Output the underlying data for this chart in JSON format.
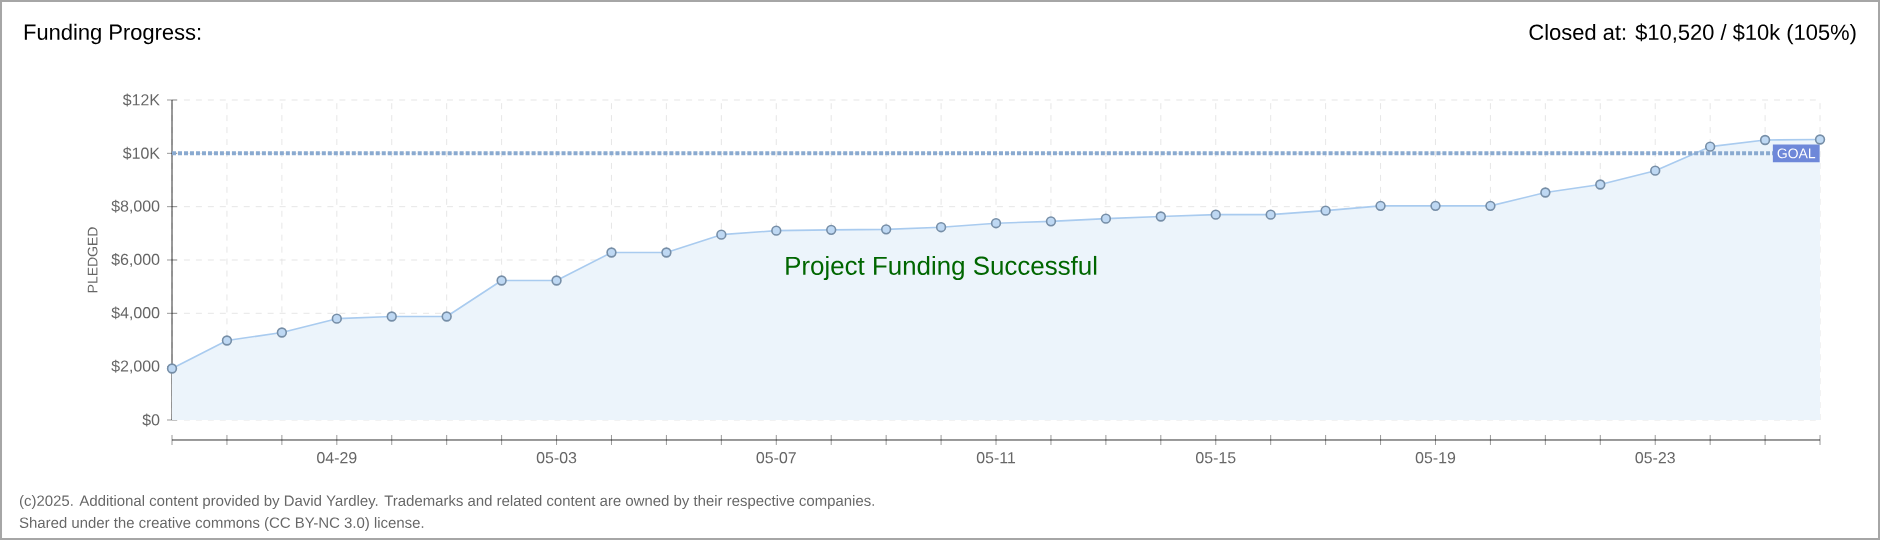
{
  "chart_data": {
    "type": "area",
    "title": "Funding Progress:",
    "subtitle": "Closed at: $10,520 / $10k (105%)",
    "ylabel": "PLEDGED",
    "categories": [
      null,
      null,
      null,
      "04-29",
      null,
      null,
      null,
      "05-03",
      null,
      null,
      null,
      "05-07",
      null,
      null,
      null,
      "05-11",
      null,
      null,
      null,
      "05-15",
      null,
      null,
      null,
      "05-19",
      null,
      null,
      null,
      "05-23",
      null,
      null,
      null
    ],
    "series": [
      {
        "color": "#a9cbef",
        "values": [
          1930,
          2980,
          3280,
          3800,
          3880,
          3880,
          5230,
          5230,
          6280,
          6280,
          6950,
          7100,
          7130,
          7150,
          7230,
          7380,
          7450,
          7550,
          7630,
          7700,
          7700,
          7850,
          8030,
          8030,
          8030,
          8530,
          8830,
          9350,
          10250,
          10500,
          10520
        ]
      }
    ],
    "ylim": [
      0,
      12000
    ],
    "yticks": [
      {
        "value": 0,
        "label": "$0"
      },
      {
        "value": 2000,
        "label": "$2,000"
      },
      {
        "value": 4000,
        "label": "$4,000"
      },
      {
        "value": 6000,
        "label": "$6,000"
      },
      {
        "value": 8000,
        "label": "$8,000"
      },
      {
        "value": 10000,
        "label": "$10K"
      },
      {
        "value": 12000,
        "label": "$12K"
      }
    ],
    "ref_lines": [
      {
        "axis": "y",
        "value": 10000,
        "label": "GOAL",
        "color": "#8aaad0",
        "line_style": "dotted"
      }
    ],
    "grid": true,
    "marker": "circle",
    "annotations": [
      "Project Funding Successful",
      "(c)2025. Additional content provided by David Yardley. Trademarks and related content are owned by their respective companies.",
      "Shared under the creative commons (CC BY-NC 3.0) license."
    ]
  }
}
